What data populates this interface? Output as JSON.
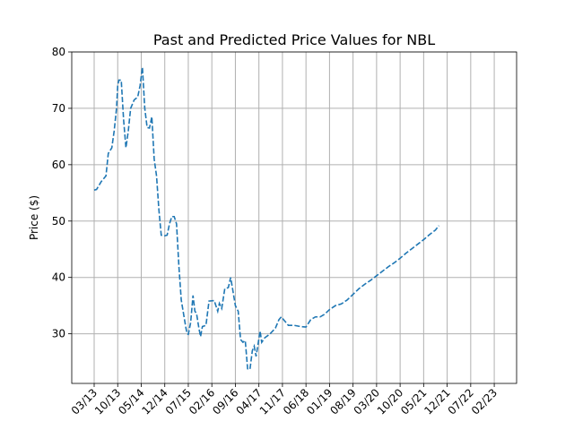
{
  "chart_data": {
    "type": "line",
    "title": "Past and Predicted Price Values for NBL",
    "xlabel": "",
    "ylabel": "Price ($)",
    "ylim": [
      21.2,
      80
    ],
    "yticks": [
      30,
      40,
      50,
      60,
      70,
      80
    ],
    "x_tick_labels": [
      "03/13",
      "10/13",
      "05/14",
      "12/14",
      "07/15",
      "02/16",
      "09/16",
      "04/17",
      "11/17",
      "06/18",
      "01/19",
      "08/19",
      "03/20",
      "10/20",
      "05/21",
      "12/21",
      "07/22",
      "02/23"
    ],
    "grid": true,
    "color": "#1f77b4",
    "series": [
      {
        "values": [
          [
            0,
            55.5
          ],
          [
            0.1,
            55.6
          ],
          [
            0.3,
            57.0
          ],
          [
            0.5,
            58.0
          ],
          [
            0.6,
            62.0
          ],
          [
            0.75,
            63.0
          ],
          [
            0.85,
            66.0
          ],
          [
            0.95,
            70.0
          ],
          [
            1.0,
            74.0
          ],
          [
            1.05,
            75.0
          ],
          [
            1.15,
            75.0
          ],
          [
            1.25,
            68.0
          ],
          [
            1.35,
            63.0
          ],
          [
            1.45,
            66.0
          ],
          [
            1.55,
            70.0
          ],
          [
            1.7,
            71.5
          ],
          [
            1.85,
            72.0
          ],
          [
            1.95,
            74.0
          ],
          [
            2.05,
            77.3
          ],
          [
            2.15,
            70.0
          ],
          [
            2.25,
            66.6
          ],
          [
            2.35,
            66.5
          ],
          [
            2.45,
            68.5
          ],
          [
            2.55,
            61.0
          ],
          [
            2.65,
            58.0
          ],
          [
            2.75,
            52.0
          ],
          [
            2.85,
            47.5
          ],
          [
            3.0,
            47.4
          ],
          [
            3.1,
            47.5
          ],
          [
            3.2,
            49.5
          ],
          [
            3.3,
            50.8
          ],
          [
            3.4,
            50.8
          ],
          [
            3.5,
            49.5
          ],
          [
            3.6,
            42.0
          ],
          [
            3.7,
            36.0
          ],
          [
            3.8,
            33.5
          ],
          [
            3.9,
            31.0
          ],
          [
            3.95,
            30.0
          ],
          [
            4.0,
            29.9
          ],
          [
            4.1,
            32.0
          ],
          [
            4.2,
            36.8
          ],
          [
            4.28,
            34.0
          ],
          [
            4.35,
            33.6
          ],
          [
            4.45,
            31.0
          ],
          [
            4.52,
            29.5
          ],
          [
            4.6,
            31.3
          ],
          [
            4.75,
            31.5
          ],
          [
            4.88,
            35.8
          ],
          [
            5.1,
            35.9
          ],
          [
            5.25,
            34.0
          ],
          [
            5.32,
            35.4
          ],
          [
            5.42,
            34.5
          ],
          [
            5.55,
            38.0
          ],
          [
            5.7,
            38.2
          ],
          [
            5.8,
            40.0
          ],
          [
            5.9,
            37.5
          ],
          [
            6.0,
            35.0
          ],
          [
            6.12,
            34.0
          ],
          [
            6.22,
            29.0
          ],
          [
            6.32,
            28.5
          ],
          [
            6.42,
            28.8
          ],
          [
            6.52,
            23.8
          ],
          [
            6.62,
            23.7
          ],
          [
            6.72,
            27.0
          ],
          [
            6.8,
            27.8
          ],
          [
            6.88,
            26.0
          ],
          [
            6.95,
            27.8
          ],
          [
            7.05,
            30.5
          ],
          [
            7.12,
            28.5
          ],
          [
            7.25,
            29.3
          ],
          [
            7.45,
            29.9
          ],
          [
            7.7,
            31.0
          ],
          [
            7.85,
            32.5
          ],
          [
            7.95,
            33.0
          ],
          [
            8.05,
            32.5
          ],
          [
            8.25,
            31.5
          ],
          [
            8.5,
            31.5
          ],
          [
            8.75,
            31.3
          ],
          [
            9.0,
            31.2
          ],
          [
            9.2,
            32.5
          ],
          [
            9.4,
            33.0
          ],
          [
            9.6,
            33.0
          ],
          [
            9.8,
            33.5
          ],
          [
            10.0,
            34.3
          ],
          [
            10.25,
            35.0
          ],
          [
            10.5,
            35.3
          ],
          [
            10.75,
            36.0
          ],
          [
            11.0,
            37.0
          ],
          [
            11.25,
            38.0
          ],
          [
            11.5,
            38.8
          ],
          [
            11.75,
            39.5
          ],
          [
            12.0,
            40.3
          ],
          [
            12.25,
            41.1
          ],
          [
            12.5,
            41.9
          ],
          [
            12.75,
            42.6
          ],
          [
            13.0,
            43.4
          ],
          [
            13.25,
            44.3
          ],
          [
            13.5,
            45.1
          ],
          [
            13.75,
            45.9
          ],
          [
            14.0,
            46.7
          ],
          [
            14.25,
            47.6
          ],
          [
            14.5,
            48.4
          ],
          [
            14.65,
            49.2
          ]
        ]
      }
    ]
  }
}
